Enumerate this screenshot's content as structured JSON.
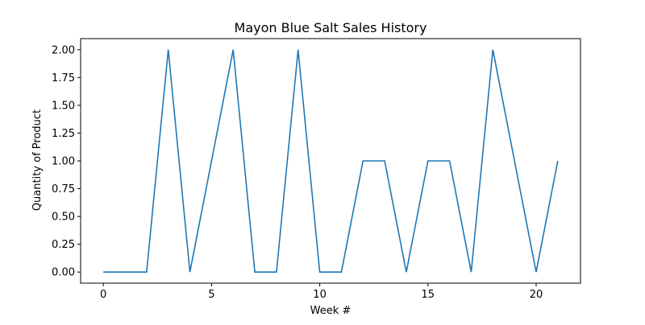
{
  "chart_data": {
    "type": "line",
    "title": "Mayon Blue Salt Sales History",
    "xlabel": "Week #",
    "ylabel": "Quantity of Product",
    "xlim": [
      -1.05,
      22.05
    ],
    "ylim": [
      -0.1,
      2.1
    ],
    "xticks": [
      0,
      5,
      10,
      15,
      20
    ],
    "xtick_labels": [
      "0",
      "5",
      "10",
      "15",
      "20"
    ],
    "yticks": [
      0,
      0.25,
      0.5,
      0.75,
      1.0,
      1.25,
      1.5,
      1.75,
      2.0
    ],
    "ytick_labels": [
      "0.00",
      "0.25",
      "0.50",
      "0.75",
      "1.00",
      "1.25",
      "1.50",
      "1.75",
      "2.00"
    ],
    "grid": false,
    "legend": "none",
    "series": [
      {
        "color": "#1f77b4",
        "x": [
          0,
          1,
          2,
          3,
          4,
          5,
          6,
          7,
          8,
          9,
          10,
          11,
          12,
          13,
          14,
          15,
          16,
          17,
          18,
          19,
          20,
          21
        ],
        "y": [
          0,
          0,
          0,
          2,
          0,
          1,
          2,
          0,
          0,
          2,
          0,
          0,
          1,
          1,
          0,
          1,
          1,
          0,
          2,
          1,
          0,
          1
        ]
      }
    ]
  }
}
